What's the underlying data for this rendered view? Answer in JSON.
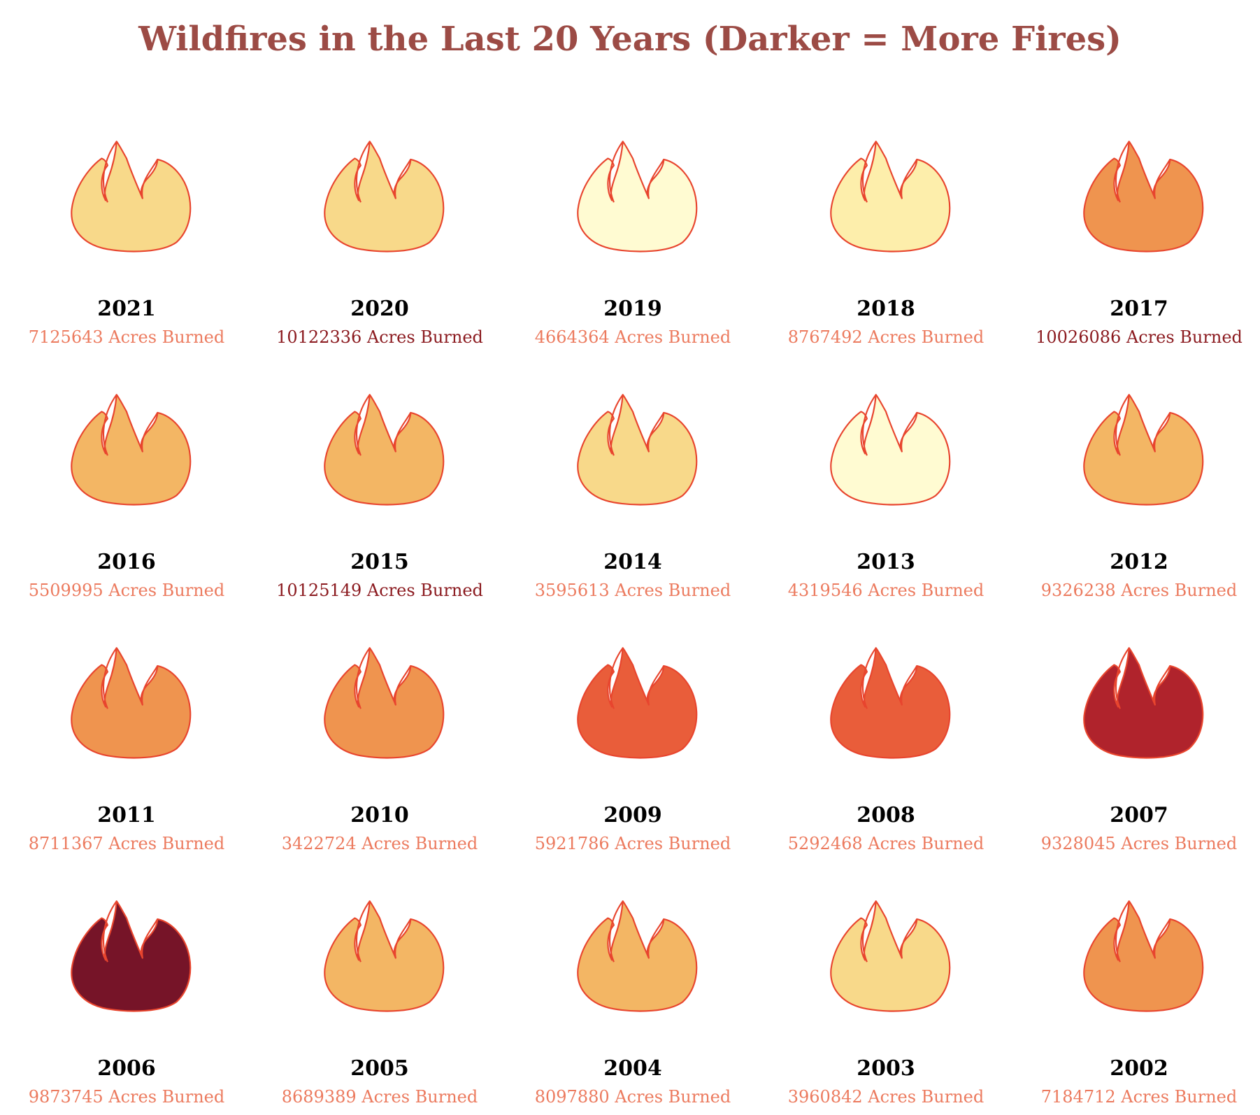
{
  "title": "Wildfires in the Last 20 Years (Darker = More Fires)",
  "acres_suffix": "Acres Burned",
  "colors": {
    "title": "#9c4b45",
    "flame_stroke": "#e8452e",
    "acres_text_light": "#ec7b5f",
    "acres_text_dark": "#8b1a1f",
    "year_text": "#000000"
  },
  "chart_data": {
    "type": "pictogram",
    "title": "Wildfires in the Last 20 Years (Darker = More Fires)",
    "legend": "Darker = More Fires",
    "items": [
      {
        "year": "2021",
        "acres": 7125643,
        "fill": "#f8d98a",
        "acres_color": "#ec7b5f"
      },
      {
        "year": "2020",
        "acres": 10122336,
        "fill": "#f8d98a",
        "acres_color": "#8b1a1f"
      },
      {
        "year": "2019",
        "acres": 4664364,
        "fill": "#fffbd2",
        "acres_color": "#ec7b5f"
      },
      {
        "year": "2018",
        "acres": 8767492,
        "fill": "#fdeeab",
        "acres_color": "#ec7b5f"
      },
      {
        "year": "2017",
        "acres": 10026086,
        "fill": "#ef944f",
        "acres_color": "#8b1a1f"
      },
      {
        "year": "2016",
        "acres": 5509995,
        "fill": "#f3b664",
        "acres_color": "#ec7b5f"
      },
      {
        "year": "2015",
        "acres": 10125149,
        "fill": "#f3b664",
        "acres_color": "#8b1a1f"
      },
      {
        "year": "2014",
        "acres": 3595613,
        "fill": "#f8d98a",
        "acres_color": "#ec7b5f"
      },
      {
        "year": "2013",
        "acres": 4319546,
        "fill": "#fffbd2",
        "acres_color": "#ec7b5f"
      },
      {
        "year": "2012",
        "acres": 9326238,
        "fill": "#f3b664",
        "acres_color": "#ec7b5f"
      },
      {
        "year": "2011",
        "acres": 8711367,
        "fill": "#ef944f",
        "acres_color": "#ec7b5f"
      },
      {
        "year": "2010",
        "acres": 3422724,
        "fill": "#ef944f",
        "acres_color": "#ec7b5f"
      },
      {
        "year": "2009",
        "acres": 5921786,
        "fill": "#e95d3a",
        "acres_color": "#ec7b5f"
      },
      {
        "year": "2008",
        "acres": 5292468,
        "fill": "#e95d3a",
        "acres_color": "#ec7b5f"
      },
      {
        "year": "2007",
        "acres": 9328045,
        "fill": "#b0232c",
        "acres_color": "#ec7b5f"
      },
      {
        "year": "2006",
        "acres": 9873745,
        "fill": "#761428",
        "acres_color": "#ec7b5f"
      },
      {
        "year": "2005",
        "acres": 8689389,
        "fill": "#f3b664",
        "acres_color": "#ec7b5f"
      },
      {
        "year": "2004",
        "acres": 8097880,
        "fill": "#f3b664",
        "acres_color": "#ec7b5f"
      },
      {
        "year": "2003",
        "acres": 3960842,
        "fill": "#f8d98a",
        "acres_color": "#ec7b5f"
      },
      {
        "year": "2002",
        "acres": 7184712,
        "fill": "#ef944f",
        "acres_color": "#ec7b5f"
      }
    ]
  }
}
